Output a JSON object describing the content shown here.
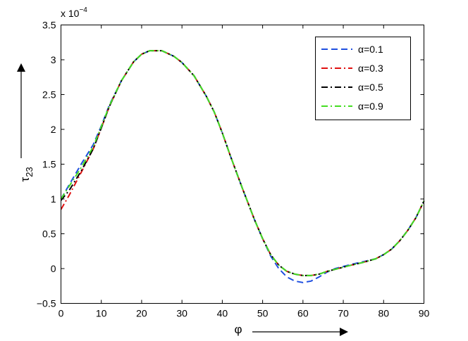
{
  "chart_data": {
    "type": "line",
    "xlabel": "φ",
    "ylabel": "τ",
    "ylabel_subscript": "23",
    "y_multiplier_base": "x 10",
    "y_multiplier_exp": "−4",
    "xlim": [
      0,
      90
    ],
    "ylim": [
      -0.5,
      3.5
    ],
    "x_ticks": [
      0,
      10,
      20,
      30,
      40,
      50,
      60,
      70,
      80,
      90
    ],
    "y_ticks": [
      -0.5,
      0,
      0.5,
      1,
      1.5,
      2,
      2.5,
      3,
      3.5
    ],
    "x_tick_labels": [
      "0",
      "10",
      "20",
      "30",
      "40",
      "50",
      "60",
      "70",
      "80",
      "90"
    ],
    "y_tick_labels": [
      "−0.5",
      "0",
      "0.5",
      "1",
      "1.5",
      "2",
      "2.5",
      "3",
      "3.5"
    ],
    "grid": false,
    "legend_position": "top-right",
    "series": [
      {
        "name": "α=0.1",
        "color": "#1f4fe0",
        "dash": "dashed",
        "x": [
          0,
          2,
          5,
          8,
          10,
          12,
          15,
          18,
          20,
          22,
          25,
          28,
          30,
          33,
          36,
          38,
          40,
          42,
          45,
          48,
          50,
          52,
          54,
          56,
          58,
          60,
          62,
          64,
          66,
          68,
          70,
          72,
          75,
          78,
          80,
          82,
          84,
          86,
          88,
          90
        ],
        "y": [
          1.0,
          1.2,
          1.5,
          1.78,
          2.05,
          2.35,
          2.7,
          2.97,
          3.08,
          3.13,
          3.13,
          3.05,
          2.96,
          2.77,
          2.48,
          2.25,
          1.95,
          1.62,
          1.15,
          0.7,
          0.43,
          0.18,
          0.0,
          -0.12,
          -0.18,
          -0.2,
          -0.18,
          -0.12,
          -0.05,
          0.0,
          0.03,
          0.06,
          0.1,
          0.14,
          0.2,
          0.28,
          0.4,
          0.55,
          0.73,
          0.97
        ]
      },
      {
        "name": "α=0.3",
        "color": "#e01010",
        "dash": "dashdot",
        "x": [
          0,
          2,
          5,
          8,
          10,
          12,
          15,
          18,
          20,
          22,
          25,
          28,
          30,
          33,
          36,
          38,
          40,
          42,
          45,
          48,
          50,
          52,
          54,
          56,
          58,
          60,
          62,
          64,
          66,
          68,
          70,
          72,
          75,
          78,
          80,
          82,
          84,
          86,
          88,
          90
        ],
        "y": [
          0.85,
          1.05,
          1.38,
          1.72,
          2.02,
          2.33,
          2.7,
          2.97,
          3.08,
          3.13,
          3.13,
          3.05,
          2.96,
          2.77,
          2.48,
          2.25,
          1.95,
          1.62,
          1.15,
          0.7,
          0.43,
          0.2,
          0.05,
          -0.04,
          -0.08,
          -0.1,
          -0.1,
          -0.08,
          -0.04,
          -0.01,
          0.02,
          0.05,
          0.09,
          0.14,
          0.2,
          0.28,
          0.4,
          0.55,
          0.73,
          0.97
        ]
      },
      {
        "name": "α=0.5",
        "color": "#000000",
        "dash": "dashdot",
        "x": [
          0,
          2,
          5,
          8,
          10,
          12,
          15,
          18,
          20,
          22,
          25,
          28,
          30,
          33,
          36,
          38,
          40,
          42,
          45,
          48,
          50,
          52,
          54,
          56,
          58,
          60,
          62,
          64,
          66,
          68,
          70,
          72,
          75,
          78,
          80,
          82,
          84,
          86,
          88,
          90
        ],
        "y": [
          0.98,
          1.12,
          1.4,
          1.72,
          2.02,
          2.33,
          2.7,
          2.97,
          3.08,
          3.13,
          3.13,
          3.05,
          2.96,
          2.77,
          2.48,
          2.25,
          1.95,
          1.62,
          1.15,
          0.7,
          0.43,
          0.2,
          0.05,
          -0.04,
          -0.08,
          -0.1,
          -0.1,
          -0.08,
          -0.04,
          -0.01,
          0.02,
          0.05,
          0.09,
          0.14,
          0.2,
          0.28,
          0.4,
          0.55,
          0.73,
          0.97
        ]
      },
      {
        "name": "α=0.9",
        "color": "#44dd22",
        "dash": "dashdot",
        "x": [
          0,
          2,
          5,
          8,
          10,
          12,
          15,
          18,
          20,
          22,
          25,
          28,
          30,
          33,
          36,
          38,
          40,
          42,
          45,
          48,
          50,
          52,
          54,
          56,
          58,
          60,
          62,
          64,
          66,
          68,
          70,
          72,
          75,
          78,
          80,
          82,
          84,
          86,
          88,
          90
        ],
        "y": [
          1.0,
          1.18,
          1.45,
          1.75,
          2.04,
          2.34,
          2.7,
          2.97,
          3.08,
          3.13,
          3.13,
          3.05,
          2.96,
          2.77,
          2.48,
          2.25,
          1.95,
          1.62,
          1.15,
          0.7,
          0.43,
          0.2,
          0.05,
          -0.04,
          -0.08,
          -0.1,
          -0.1,
          -0.08,
          -0.04,
          -0.01,
          0.02,
          0.05,
          0.09,
          0.14,
          0.2,
          0.28,
          0.4,
          0.55,
          0.73,
          0.97
        ]
      }
    ]
  }
}
